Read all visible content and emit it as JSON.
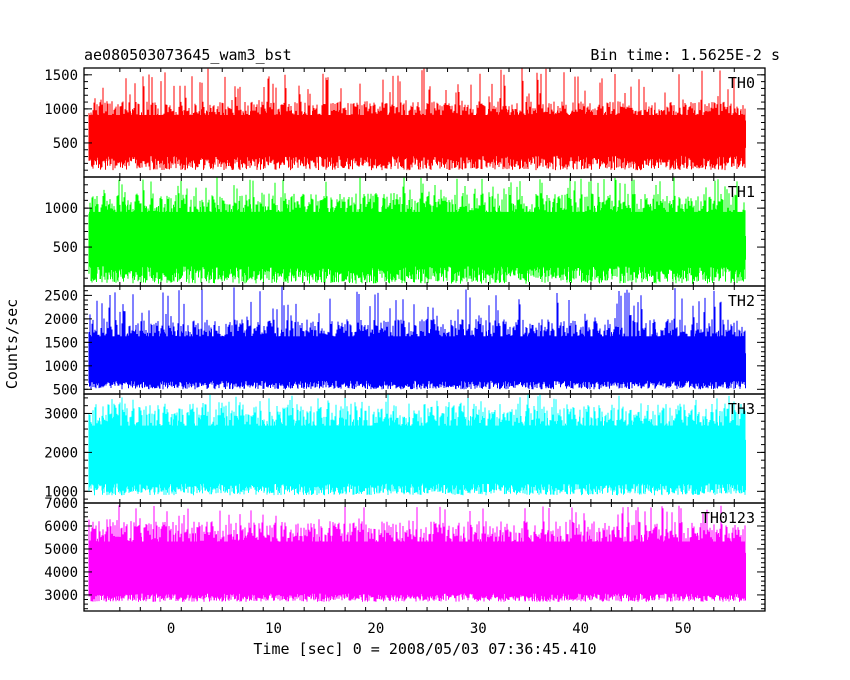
{
  "header": {
    "title": "ae080503073645_wam3_bst",
    "bin_time": "Bin time: 1.5625E-2 s"
  },
  "chart_data": {
    "type": "line",
    "title": "ae080503073645_wam3_bst",
    "subtitle": "Bin time: 1.5625E-2 s",
    "xlabel": "Time [sec] 0 = 2008/05/03 07:36:45.410",
    "ylabel": "Counts/sec",
    "xlim": [
      -8.5,
      58
    ],
    "x_data_range": [
      -8,
      56
    ],
    "x_ticks": [
      0,
      10,
      20,
      30,
      40,
      50
    ],
    "x_tick_labels": [
      "0",
      "10",
      "20",
      "30",
      "40",
      "50"
    ],
    "grid": false,
    "panels": [
      {
        "name": "TH0",
        "color": "#ff0000",
        "ylim": [
          0,
          1600
        ],
        "ticks": [
          500,
          1000,
          1500
        ],
        "tick_labels": [
          "500",
          "1000",
          "1500"
        ],
        "baseline": 100,
        "level_low": 450,
        "level_high": 950,
        "spike_max": 1600
      },
      {
        "name": "TH1",
        "color": "#00ff00",
        "ylim": [
          0,
          1400
        ],
        "ticks": [
          500,
          1000
        ],
        "tick_labels": [
          "500",
          "1000"
        ],
        "baseline": 30,
        "level_low": 400,
        "level_high": 1000,
        "spike_max": 1400
      },
      {
        "name": "TH2",
        "color": "#0000ff",
        "ylim": [
          400,
          2700
        ],
        "ticks": [
          500,
          1000,
          1500,
          2000,
          2500
        ],
        "tick_labels": [
          "500",
          "1000",
          "1500",
          "2000",
          "2500"
        ],
        "baseline": 500,
        "level_low": 800,
        "level_high": 1700,
        "spike_max": 2700
      },
      {
        "name": "TH3",
        "color": "#00ffff",
        "ylim": [
          700,
          3500
        ],
        "ticks": [
          1000,
          2000,
          3000
        ],
        "tick_labels": [
          "1000",
          "2000",
          "3000"
        ],
        "baseline": 900,
        "level_low": 1400,
        "level_high": 2800,
        "spike_max": 3500
      },
      {
        "name": "TH0123",
        "color": "#ff00ff",
        "ylim": [
          2300,
          7000
        ],
        "ticks": [
          3000,
          4000,
          5000,
          6000,
          7000
        ],
        "tick_labels": [
          "3000",
          "4000",
          "5000",
          "6000",
          "7000"
        ],
        "baseline": 2700,
        "level_low": 3300,
        "level_high": 5500,
        "spike_max": 6900
      }
    ]
  }
}
